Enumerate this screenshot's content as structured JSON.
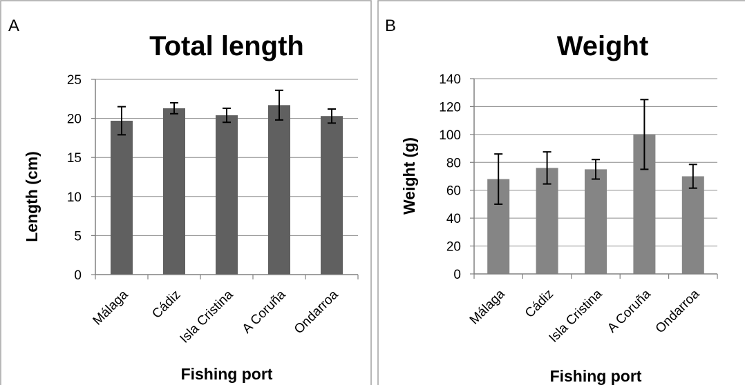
{
  "chart_data": [
    {
      "panel_label": "A",
      "type": "bar",
      "title": "Total length",
      "xlabel": "Fishing port",
      "ylabel": "Length (cm)",
      "categories": [
        "Málaga",
        "Cádiz",
        "Isla Cristina",
        "A Coruña",
        "Ondarroa"
      ],
      "values": [
        19.7,
        21.3,
        20.4,
        21.7,
        20.3
      ],
      "errors": [
        1.8,
        0.7,
        0.9,
        1.9,
        0.9
      ],
      "ylim": [
        0,
        25
      ],
      "yticks": [
        0,
        5,
        10,
        15,
        20,
        25
      ],
      "grid": true,
      "bar_color": "#606060"
    },
    {
      "panel_label": "B",
      "type": "bar",
      "title": "Weight",
      "xlabel": "Fishing port",
      "ylabel": "Weight (g)",
      "categories": [
        "Málaga",
        "Cádiz",
        "Isla Cristina",
        "A Coruña",
        "Ondarroa"
      ],
      "values": [
        68,
        76,
        75,
        100,
        70
      ],
      "errors": [
        18,
        11.5,
        7,
        25,
        8.5
      ],
      "ylim": [
        0,
        140
      ],
      "yticks": [
        0,
        20,
        40,
        60,
        80,
        100,
        120,
        140
      ],
      "grid": true,
      "bar_color": "#858585"
    }
  ]
}
